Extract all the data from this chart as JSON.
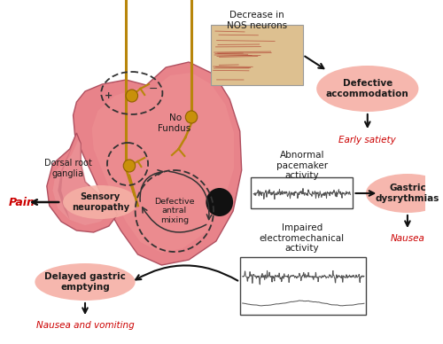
{
  "bg_color": "#ffffff",
  "nerve_color": "#b8860b",
  "red_text_color": "#cc0000",
  "black_text_color": "#1a1a1a",
  "pink_blob_color": "#f2a8a0",
  "labels": {
    "decrease_nos": "Decrease in\nNOS neurons",
    "defective_accom": "Defective\naccommodation",
    "early_satiety": "Early satiety",
    "dorsal_root": "Dorsal root\nganglia",
    "fundus": "Fundus",
    "no_label": "No",
    "pain": "Pain",
    "sensory_neuropathy": "Sensory\nneuropathy",
    "defective_antral": "Defective\nantral\nmixing",
    "abnormal_pacemaker": "Abnormal\npacemaker\nactivity",
    "gastric_dysrythmias": "Gastric\ndysrythmias",
    "nausea": "Nausea",
    "impaired_electro": "Impaired\nelectromechanical\nactivity",
    "delayed_gastric": "Delayed gastric\nemptying",
    "nausea_vomiting": "Nausea and vomiting"
  }
}
